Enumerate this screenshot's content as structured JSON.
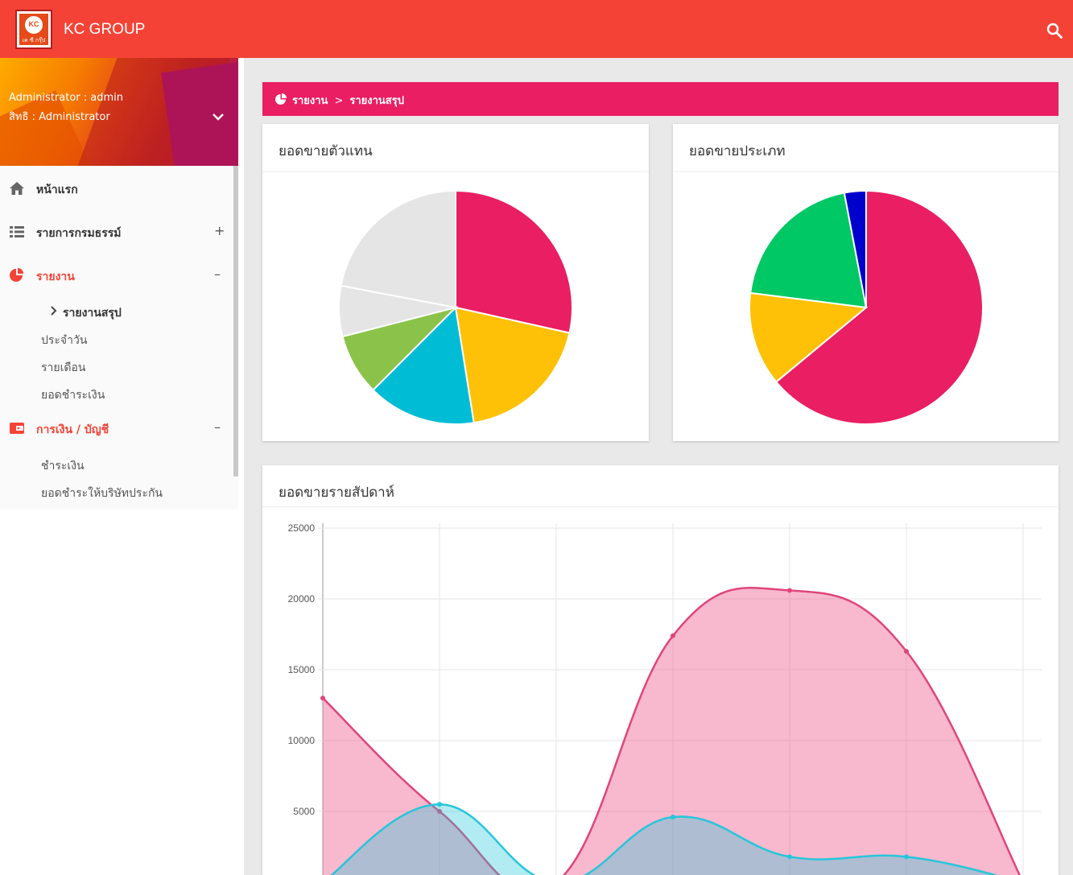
{
  "app": {
    "brand": "KC GROUP",
    "logo_text": "KC",
    "logo_subtext": "เค ซี กรุ๊ป"
  },
  "user": {
    "name": "Administrator : admin",
    "role": "สิทธิ : Administrator"
  },
  "sidebar": {
    "home": "หน้าแรก",
    "policies": "รายการกรมธรรม์",
    "reports": "รายงาน",
    "report_summary": "รายงานสรุป",
    "report_daily": "ประจำวัน",
    "report_monthly": "รายเดือน",
    "report_payments": "ยอดชำระเงิน",
    "finance": "การเงิน / บัญชี",
    "finance_pay": "ชำระเงิน",
    "finance_insurer": "ยอดชำระให้บริษัทประกัน",
    "plus_sign": "+",
    "minus_sign": "–"
  },
  "breadcrumb": {
    "parent": "รายงาน",
    "separator": ">",
    "current": "รายงานสรุป"
  },
  "colors": {
    "topbar": "#f44336",
    "accent": "#e91e63",
    "active_menu": "#f44336"
  },
  "cards": {
    "agent_title": "ยอดขายตัวแทน",
    "type_title": "ยอดขายประเภท",
    "weekly_title": "ยอดขายรายสัปดาห์"
  },
  "chart_data": [
    {
      "type": "pie",
      "title": "ยอดขายตัวแทน",
      "values": [
        28.5,
        19,
        15,
        8.5,
        7,
        22
      ],
      "colors": [
        "#e91e63",
        "#ffc107",
        "#00bcd4",
        "#8bc34a",
        "#e5e5e5",
        "#e5e5e5"
      ]
    },
    {
      "type": "pie",
      "title": "ยอดขายประเภท",
      "values": [
        64,
        13,
        20,
        3
      ],
      "colors": [
        "#e91e63",
        "#ffc107",
        "#00c864",
        "#0000cc"
      ]
    },
    {
      "type": "area",
      "title": "ยอดขายรายสัปดาห์",
      "ylim": [
        0,
        25000
      ],
      "yticks": [
        5000,
        10000,
        15000,
        20000,
        25000
      ],
      "x": [
        1,
        2,
        3,
        4,
        5,
        6,
        7
      ],
      "series": [
        {
          "values": [
            13000,
            5000,
            0,
            17400,
            20600,
            16300,
            0
          ],
          "color": "#e0457b",
          "fill": "rgba(240,98,146,0.45)"
        },
        {
          "values": [
            0,
            5500,
            0,
            4600,
            1800,
            1800,
            0
          ],
          "color": "#26c6da",
          "fill": "rgba(38,198,218,0.35)"
        }
      ]
    }
  ]
}
